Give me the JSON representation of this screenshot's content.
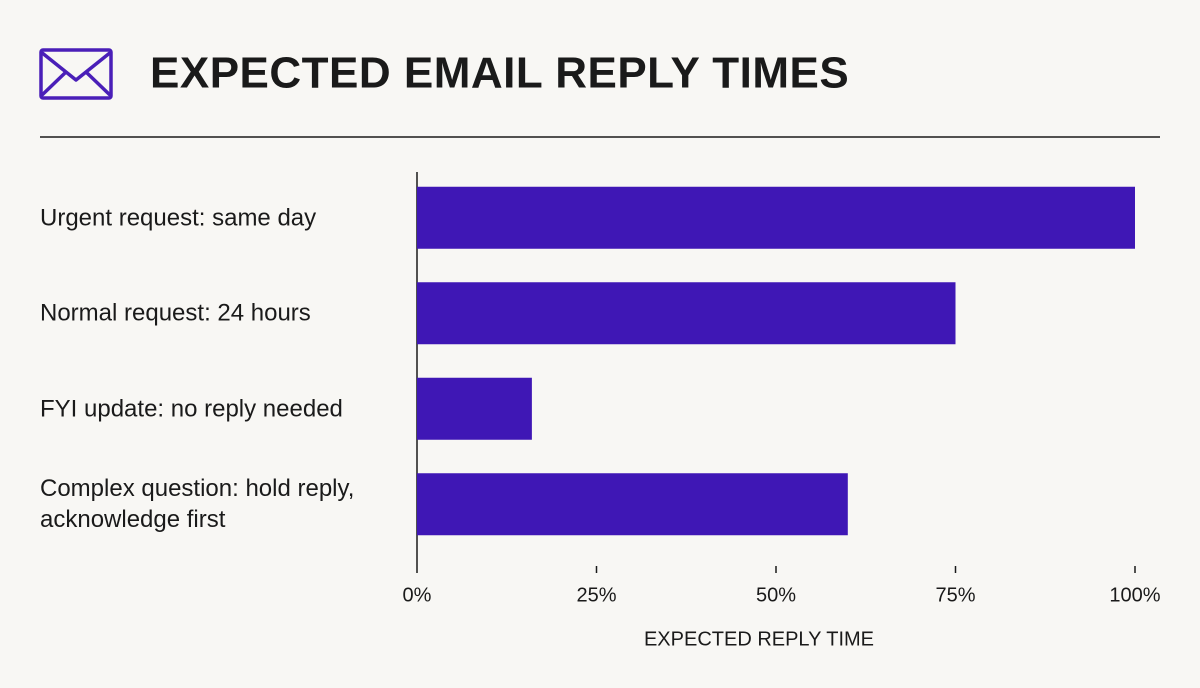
{
  "chart_data": {
    "type": "barh",
    "title": "EXPECTED EMAIL REPLY TIMES",
    "categories": [
      "Urgent request: same day",
      "Normal request: 24 hours",
      "FYI update: no reply needed",
      "Complex question: hold reply, acknowledge first"
    ],
    "values": [
      100,
      75,
      16,
      60
    ],
    "color": "#3f17b5",
    "xlabel": "EXPECTED REPLY TIME",
    "xlim": [
      0,
      100
    ],
    "xticks": [
      {
        "value": 0,
        "label": "0%"
      },
      {
        "value": 25,
        "label": "25%"
      },
      {
        "value": 50,
        "label": "50%"
      },
      {
        "value": 75,
        "label": "75%"
      },
      {
        "value": 100,
        "label": "100%"
      }
    ],
    "grid": false
  }
}
